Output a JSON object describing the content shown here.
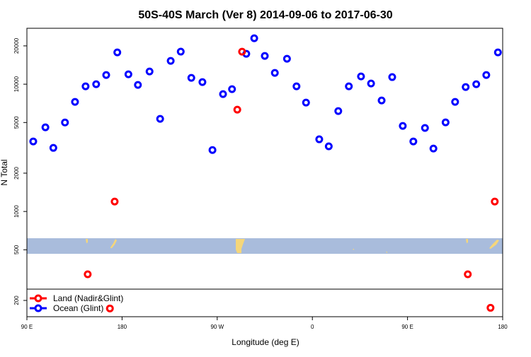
{
  "chart_data": {
    "type": "scatter",
    "title": "50S-40S March (Ver 8)   2014-09-06 to 2017-06-30",
    "xlabel": "Longitude (deg E)",
    "ylabel": "N Total",
    "log_y": true,
    "xlim": [
      90,
      540
    ],
    "ylim": [
      149,
      27500
    ],
    "xticks": [
      {
        "value": 90,
        "label": "90 E"
      },
      180,
      {
        "value": 270,
        "label": "90 W"
      },
      {
        "value": 360,
        "label": "0"
      },
      {
        "value": 450,
        "label": "90 E"
      },
      {
        "value": 540,
        "label": "180"
      }
    ],
    "yticks": [
      200,
      500,
      1000,
      2000,
      5000,
      10000,
      20000
    ],
    "series": [
      {
        "name": "Land (Nadir&Glint)",
        "color": "#ff0000",
        "x": [
          147.5,
          173,
          168.5,
          289,
          293.5,
          507,
          528.5,
          532.5
        ],
        "values": [
          321,
          1197,
          173,
          6310,
          18010,
          321,
          175,
          1197
        ]
      },
      {
        "name": "Ocean (Glint)",
        "color": "#0000ff",
        "x": [
          96,
          107.5,
          115,
          126,
          135.5,
          145.5,
          155.5,
          165,
          175.5,
          186,
          195,
          206,
          216,
          226,
          235.5,
          245.5,
          256,
          265.5,
          275.5,
          284,
          297.5,
          305,
          315,
          324.5,
          336,
          345,
          354,
          366.5,
          375.5,
          384.5,
          394.5,
          406,
          415.5,
          425.5,
          435.5,
          445.5,
          455.5,
          466.5,
          474.5,
          486,
          495,
          505,
          515,
          524.5,
          535.5
        ],
        "values": [
          3550,
          4580,
          3160,
          5000,
          7260,
          9620,
          10000,
          11810,
          17780,
          11960,
          9870,
          12590,
          5340,
          15250,
          18020,
          11220,
          10390,
          3040,
          8360,
          9140,
          17330,
          22960,
          16680,
          12270,
          15850,
          9620,
          7170,
          3690,
          3250,
          6150,
          9620,
          11510,
          10130,
          7450,
          11370,
          4700,
          3550,
          4530,
          3120,
          5010,
          7260,
          9500,
          10000,
          11800,
          17780
        ]
      }
    ]
  }
}
